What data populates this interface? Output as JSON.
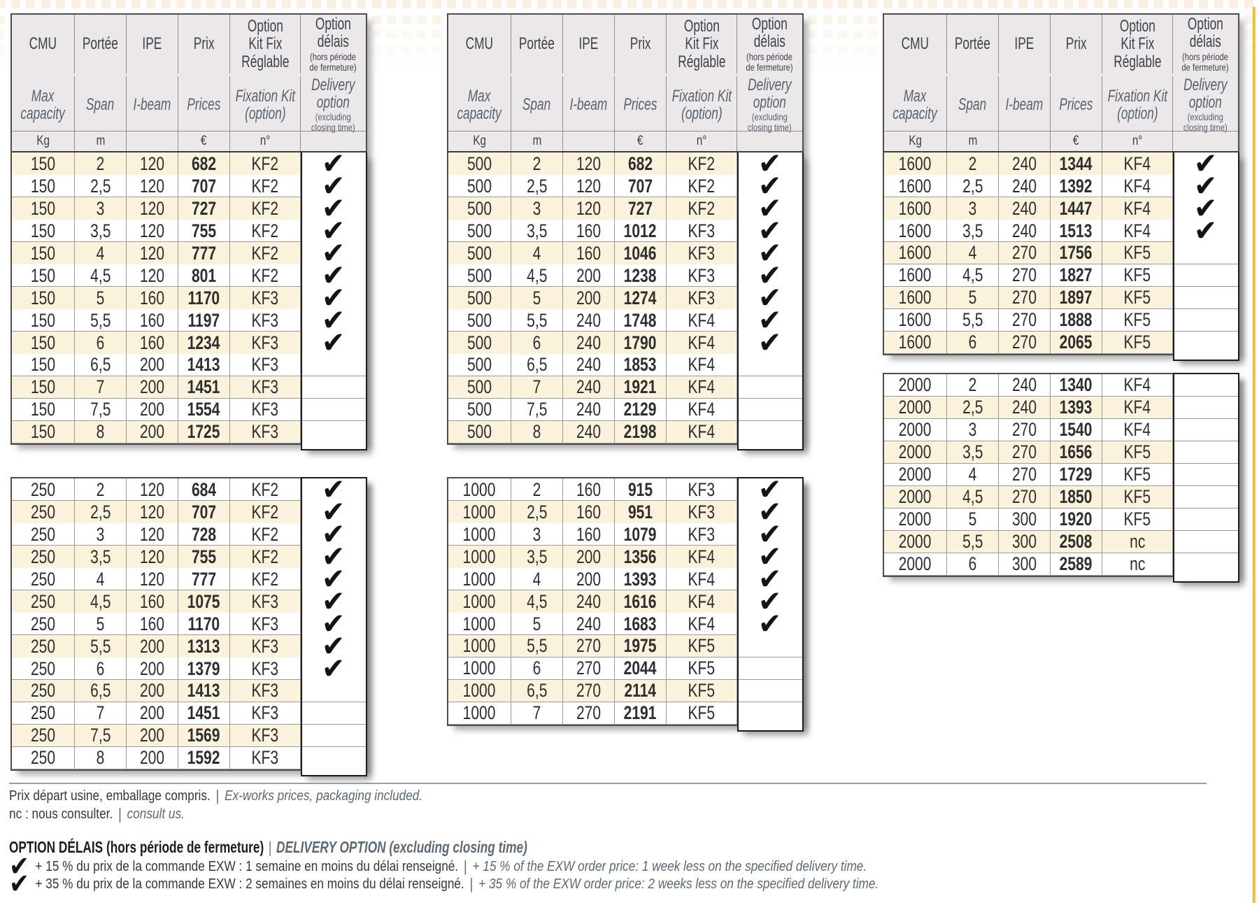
{
  "colors": {
    "beige_row": "#fbf2dc",
    "header_bg": "#ece8ea",
    "accent_yellow": "#f2b21c",
    "accent_yellow_light": "#f8cf4e",
    "pattern_beige": "#f9f0e1",
    "slate_text": "#54636f"
  },
  "icons": {
    "check": "✔"
  },
  "header": {
    "fr": {
      "cmu": "CMU",
      "portee": "Portée",
      "ipe": "IPE",
      "prix": "Prix",
      "kit": "Option\nKit Fix\nRéglable",
      "delais": "Option\ndélais"
    },
    "fr_small": {
      "delais": "(hors période\nde fermeture)"
    },
    "en": {
      "cmu": "Max\ncapacity",
      "portee": "Span",
      "ipe": "I-beam",
      "prix": "Prices",
      "kit": "Fixation Kit\n(option)",
      "delais": "Delivery\noption"
    },
    "en_small": {
      "delais": "(excluding\nclosing time)"
    },
    "units": {
      "cmu": "Kg",
      "portee": "m",
      "ipe": "",
      "prix": "€",
      "kit": "n°",
      "delais": ""
    }
  },
  "tables": [
    {
      "name": "150",
      "has_header": true,
      "first_row_beige": true,
      "rows": [
        [
          "150",
          "2",
          "120",
          "682",
          "KF2",
          true
        ],
        [
          "150",
          "2,5",
          "120",
          "707",
          "KF2",
          true
        ],
        [
          "150",
          "3",
          "120",
          "727",
          "KF2",
          true
        ],
        [
          "150",
          "3,5",
          "120",
          "755",
          "KF2",
          true
        ],
        [
          "150",
          "4",
          "120",
          "777",
          "KF2",
          true
        ],
        [
          "150",
          "4,5",
          "120",
          "801",
          "KF2",
          true
        ],
        [
          "150",
          "5",
          "160",
          "1170",
          "KF3",
          true
        ],
        [
          "150",
          "5,5",
          "160",
          "1197",
          "KF3",
          true
        ],
        [
          "150",
          "6",
          "160",
          "1234",
          "KF3",
          true
        ],
        [
          "150",
          "6,5",
          "200",
          "1413",
          "KF3",
          false
        ],
        [
          "150",
          "7",
          "200",
          "1451",
          "KF3",
          false
        ],
        [
          "150",
          "7,5",
          "200",
          "1554",
          "KF3",
          false
        ],
        [
          "150",
          "8",
          "200",
          "1725",
          "KF3",
          false
        ]
      ]
    },
    {
      "name": "250",
      "has_header": false,
      "first_row_beige": false,
      "rows": [
        [
          "250",
          "2",
          "120",
          "684",
          "KF2",
          true
        ],
        [
          "250",
          "2,5",
          "120",
          "707",
          "KF2",
          true
        ],
        [
          "250",
          "3",
          "120",
          "728",
          "KF2",
          true
        ],
        [
          "250",
          "3,5",
          "120",
          "755",
          "KF2",
          true
        ],
        [
          "250",
          "4",
          "120",
          "777",
          "KF2",
          true
        ],
        [
          "250",
          "4,5",
          "160",
          "1075",
          "KF3",
          true
        ],
        [
          "250",
          "5",
          "160",
          "1170",
          "KF3",
          true
        ],
        [
          "250",
          "5,5",
          "200",
          "1313",
          "KF3",
          true
        ],
        [
          "250",
          "6",
          "200",
          "1379",
          "KF3",
          true
        ],
        [
          "250",
          "6,5",
          "200",
          "1413",
          "KF3",
          false
        ],
        [
          "250",
          "7",
          "200",
          "1451",
          "KF3",
          false
        ],
        [
          "250",
          "7,5",
          "200",
          "1569",
          "KF3",
          false
        ],
        [
          "250",
          "8",
          "200",
          "1592",
          "KF3",
          false
        ]
      ]
    },
    {
      "name": "500",
      "has_header": true,
      "first_row_beige": true,
      "rows": [
        [
          "500",
          "2",
          "120",
          "682",
          "KF2",
          true
        ],
        [
          "500",
          "2,5",
          "120",
          "707",
          "KF2",
          true
        ],
        [
          "500",
          "3",
          "120",
          "727",
          "KF2",
          true
        ],
        [
          "500",
          "3,5",
          "160",
          "1012",
          "KF3",
          true
        ],
        [
          "500",
          "4",
          "160",
          "1046",
          "KF3",
          true
        ],
        [
          "500",
          "4,5",
          "200",
          "1238",
          "KF3",
          true
        ],
        [
          "500",
          "5",
          "200",
          "1274",
          "KF3",
          true
        ],
        [
          "500",
          "5,5",
          "240",
          "1748",
          "KF4",
          true
        ],
        [
          "500",
          "6",
          "240",
          "1790",
          "KF4",
          true
        ],
        [
          "500",
          "6,5",
          "240",
          "1853",
          "KF4",
          false
        ],
        [
          "500",
          "7",
          "240",
          "1921",
          "KF4",
          false
        ],
        [
          "500",
          "7,5",
          "240",
          "2129",
          "KF4",
          false
        ],
        [
          "500",
          "8",
          "240",
          "2198",
          "KF4",
          false
        ]
      ]
    },
    {
      "name": "1000",
      "has_header": false,
      "first_row_beige": false,
      "rows": [
        [
          "1000",
          "2",
          "160",
          "915",
          "KF3",
          true
        ],
        [
          "1000",
          "2,5",
          "160",
          "951",
          "KF3",
          true
        ],
        [
          "1000",
          "3",
          "160",
          "1079",
          "KF3",
          true
        ],
        [
          "1000",
          "3,5",
          "200",
          "1356",
          "KF4",
          true
        ],
        [
          "1000",
          "4",
          "200",
          "1393",
          "KF4",
          true
        ],
        [
          "1000",
          "4,5",
          "240",
          "1616",
          "KF4",
          true
        ],
        [
          "1000",
          "5",
          "240",
          "1683",
          "KF4",
          true
        ],
        [
          "1000",
          "5,5",
          "270",
          "1975",
          "KF5",
          false
        ],
        [
          "1000",
          "6",
          "270",
          "2044",
          "KF5",
          false
        ],
        [
          "1000",
          "6,5",
          "270",
          "2114",
          "KF5",
          false
        ],
        [
          "1000",
          "7",
          "270",
          "2191",
          "KF5",
          false
        ]
      ]
    },
    {
      "name": "1600",
      "has_header": true,
      "first_row_beige": true,
      "rows": [
        [
          "1600",
          "2",
          "240",
          "1344",
          "KF4",
          true
        ],
        [
          "1600",
          "2,5",
          "240",
          "1392",
          "KF4",
          true
        ],
        [
          "1600",
          "3",
          "240",
          "1447",
          "KF4",
          true
        ],
        [
          "1600",
          "3,5",
          "240",
          "1513",
          "KF4",
          true
        ],
        [
          "1600",
          "4",
          "270",
          "1756",
          "KF5",
          false
        ],
        [
          "1600",
          "4,5",
          "270",
          "1827",
          "KF5",
          false
        ],
        [
          "1600",
          "5",
          "270",
          "1897",
          "KF5",
          false
        ],
        [
          "1600",
          "5,5",
          "270",
          "1888",
          "KF5",
          false
        ],
        [
          "1600",
          "6",
          "270",
          "2065",
          "KF5",
          false
        ]
      ]
    },
    {
      "name": "2000",
      "has_header": false,
      "first_row_beige": false,
      "rows": [
        [
          "2000",
          "2",
          "240",
          "1340",
          "KF4",
          false
        ],
        [
          "2000",
          "2,5",
          "240",
          "1393",
          "KF4",
          false
        ],
        [
          "2000",
          "3",
          "270",
          "1540",
          "KF4",
          false
        ],
        [
          "2000",
          "3,5",
          "270",
          "1656",
          "KF5",
          false
        ],
        [
          "2000",
          "4",
          "270",
          "1729",
          "KF5",
          false
        ],
        [
          "2000",
          "4,5",
          "270",
          "1850",
          "KF5",
          false
        ],
        [
          "2000",
          "5",
          "300",
          "1920",
          "KF5",
          false
        ],
        [
          "2000",
          "5,5",
          "300",
          "2508",
          "nc",
          false
        ],
        [
          "2000",
          "6",
          "300",
          "2589",
          "nc",
          false
        ]
      ]
    }
  ],
  "footer": {
    "pipe": "|",
    "line1_fr": "Prix départ usine, emballage compris.",
    "line1_en": "Ex-works prices, packaging included.",
    "line2_fr": "nc : nous consulter.",
    "line2_en": "consult us.",
    "heading_fr": "OPTION DÉLAIS (hors période de fermeture)",
    "heading_en": "DELIVERY OPTION (excluding closing time)",
    "opt15_fr": "+ 15 % du prix de la commande EXW : 1 semaine en moins du délai renseigné.",
    "opt15_en": "+ 15 % of the EXW order price: 1 week less on the specified delivery time.",
    "opt35_fr": "+ 35 % du prix de la commande EXW : 2 semaines en moins du délai renseigné.",
    "opt35_en": "+ 35 % of the EXW order price: 2 weeks less on the specified delivery time."
  }
}
